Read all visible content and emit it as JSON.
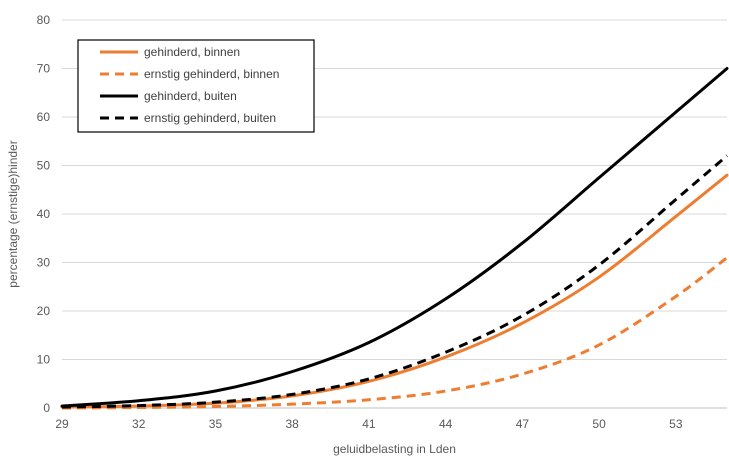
{
  "chart_data": {
    "type": "line",
    "xlabel": "geluidbelasting in Lden",
    "ylabel": "percentage (ernstige)hinder",
    "xlim": [
      29,
      55
    ],
    "ylim": [
      0,
      80
    ],
    "x_ticks": [
      29,
      32,
      35,
      38,
      41,
      44,
      47,
      50,
      53
    ],
    "y_ticks": [
      0,
      10,
      20,
      30,
      40,
      50,
      60,
      70,
      80
    ],
    "y_grid": true,
    "x_grid": false,
    "legend_position": "top-left",
    "series": [
      {
        "name": "gehinderd, binnen",
        "color": "#ED7D31",
        "dash": "solid",
        "x": [
          29,
          32,
          35,
          38,
          41,
          44,
          47,
          50,
          53,
          55
        ],
        "y": [
          0.2,
          0.4,
          1.0,
          2.5,
          5.5,
          10.5,
          17.5,
          27.0,
          39.5,
          48.0
        ]
      },
      {
        "name": "ernstig gehinderd, binnen",
        "color": "#ED7D31",
        "dash": "dashed",
        "x": [
          29,
          32,
          35,
          38,
          41,
          44,
          47,
          50,
          53,
          55
        ],
        "y": [
          0.0,
          0.1,
          0.3,
          0.8,
          1.7,
          3.5,
          7.0,
          13.0,
          23.0,
          31.0
        ]
      },
      {
        "name": "gehinderd, buiten",
        "color": "#000000",
        "dash": "solid",
        "x": [
          29,
          32,
          35,
          38,
          41,
          44,
          47,
          50,
          53,
          55
        ],
        "y": [
          0.4,
          1.5,
          3.5,
          7.5,
          13.5,
          22.5,
          34.0,
          47.5,
          61.0,
          70.0
        ]
      },
      {
        "name": "ernstig gehinderd, buiten",
        "color": "#000000",
        "dash": "dashed",
        "x": [
          29,
          32,
          35,
          38,
          41,
          44,
          47,
          50,
          53,
          55
        ],
        "y": [
          0.2,
          0.5,
          1.2,
          2.8,
          6.0,
          11.5,
          19.0,
          29.5,
          43.0,
          52.0
        ]
      }
    ]
  }
}
